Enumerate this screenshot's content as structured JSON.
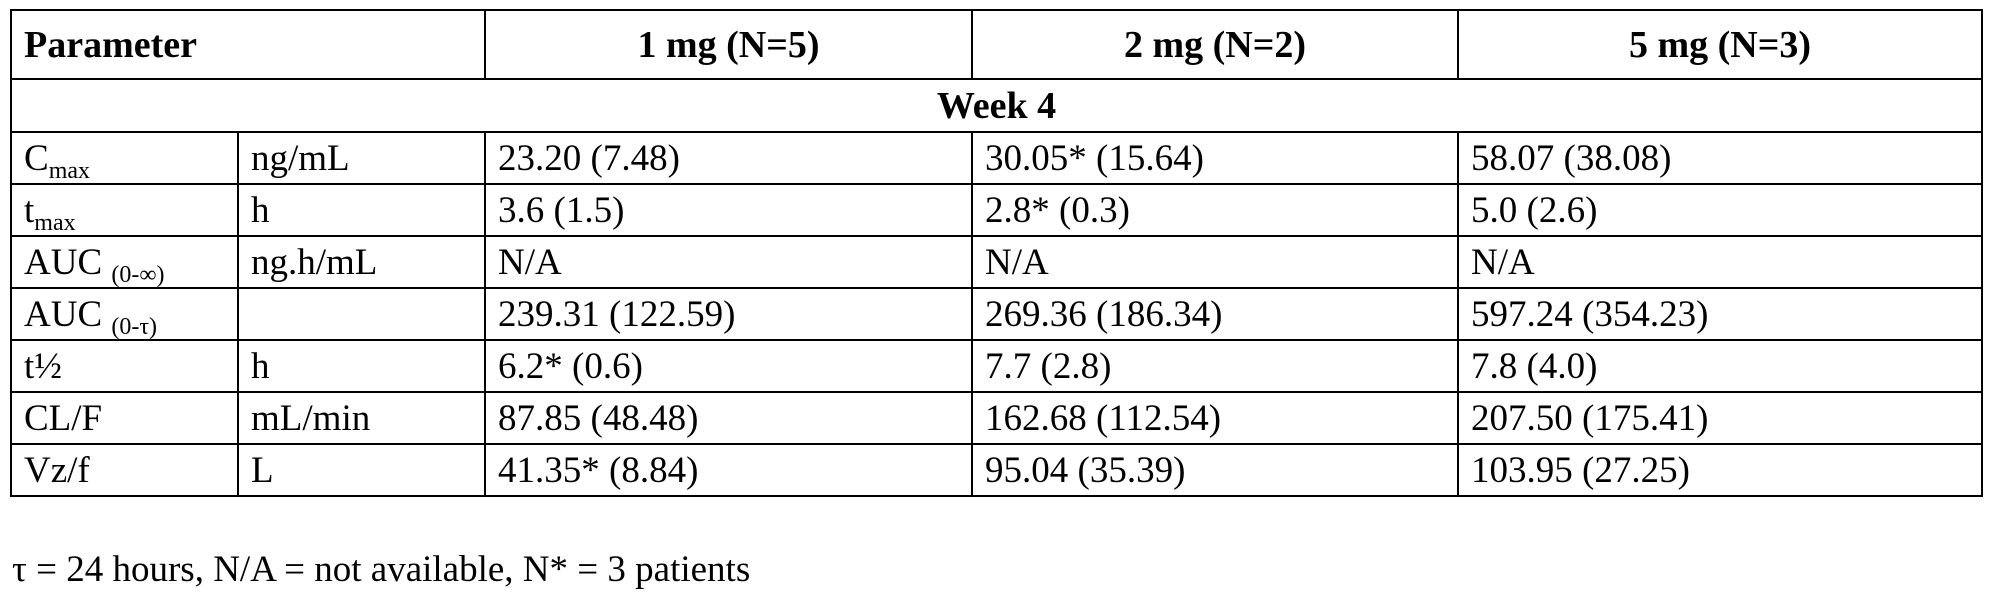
{
  "table": {
    "header": {
      "parameter": "Parameter",
      "dose1": "1 mg (N=5)",
      "dose2": "2 mg (N=2)",
      "dose3": "5 mg (N=3)"
    },
    "section": "Week 4",
    "rows": [
      {
        "name": "C",
        "sub": "max",
        "unit": "ng/mL",
        "v1": "23.20 (7.48)",
        "v2": "30.05* (15.64)",
        "v3": "58.07 (38.08)"
      },
      {
        "name": "t",
        "sub": "max",
        "unit": "h",
        "v1": "3.6 (1.5)",
        "v2": "2.8* (0.3)",
        "v3": "5.0 (2.6)"
      },
      {
        "name": "AUC ",
        "sub": "(0-∞)",
        "unit": "ng.h/mL",
        "v1": "N/A",
        "v2": "N/A",
        "v3": "N/A"
      },
      {
        "name": "AUC ",
        "sub": "(0-τ)",
        "unit": "",
        "v1": "239.31 (122.59)",
        "v2": "269.36 (186.34)",
        "v3": "597.24 (354.23)"
      },
      {
        "name": "t½",
        "sub": "",
        "unit": "h",
        "v1": "6.2* (0.6)",
        "v2": "7.7 (2.8)",
        "v3": "7.8 (4.0)"
      },
      {
        "name": "CL/F",
        "sub": "",
        "unit": "mL/min",
        "v1": "87.85 (48.48)",
        "v2": "162.68 (112.54)",
        "v3": "207.50 (175.41)"
      },
      {
        "name": "Vz/f",
        "sub": "",
        "unit": "L",
        "v1": "41.35* (8.84)",
        "v2": "95.04 (35.39)",
        "v3": "103.95 (27.25)"
      }
    ]
  },
  "footnote": "τ = 24 hours, N/A = not available, N* = 3 patients"
}
